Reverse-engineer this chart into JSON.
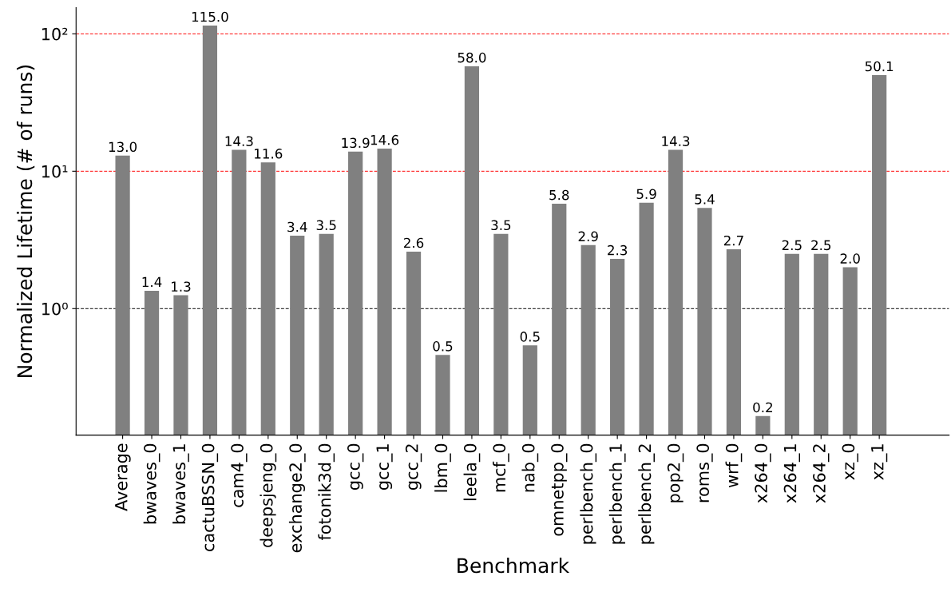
{
  "chart_data": {
    "type": "bar",
    "xlabel": "Benchmark",
    "ylabel": "Normalized Lifetime (# of runs)",
    "categories": [
      "Average",
      "bwaves_0",
      "bwaves_1",
      "cactuBSSN_0",
      "cam4_0",
      "deepsjeng_0",
      "exchange2_0",
      "fotonik3d_0",
      "gcc_0",
      "gcc_1",
      "gcc_2",
      "lbm_0",
      "leela_0",
      "mcf_0",
      "nab_0",
      "omnetpp_0",
      "perlbench_0",
      "perlbench_1",
      "perlbench_2",
      "pop2_0",
      "roms_0",
      "wrf_0",
      "x264_0",
      "x264_1",
      "x264_2",
      "xz_0",
      "xz_1"
    ],
    "values": [
      13.0,
      1.35,
      1.25,
      115.0,
      14.3,
      11.6,
      3.4,
      3.5,
      13.9,
      14.6,
      2.6,
      0.46,
      58.0,
      3.5,
      0.54,
      5.8,
      2.9,
      2.3,
      5.9,
      14.3,
      5.4,
      2.7,
      0.165,
      2.5,
      2.5,
      2.0,
      50.1
    ],
    "value_labels": [
      "13.0",
      "1.4",
      "1.3",
      "115.0",
      "14.3",
      "11.6",
      "3.4",
      "3.5",
      "13.9",
      "14.6",
      "2.6",
      "0.5",
      "58.0",
      "3.5",
      "0.5",
      "5.8",
      "2.9",
      "2.3",
      "5.9",
      "14.3",
      "5.4",
      "2.7",
      "0.2",
      "2.5",
      "2.5",
      "2.0",
      "50.1"
    ],
    "color": "#808080",
    "log": true,
    "grid": false,
    "ylim": [
      0.12,
      155
    ],
    "yticks": [
      {
        "value": 1,
        "label": "10⁰"
      },
      {
        "value": 10,
        "label": "10¹"
      },
      {
        "value": 100,
        "label": "10²"
      }
    ],
    "ref_lines": [
      {
        "axis": "y",
        "value": 1,
        "color": "#000000",
        "line_style": "dashed"
      },
      {
        "axis": "y",
        "value": 10,
        "color": "#ff0000",
        "line_style": "dashed"
      },
      {
        "axis": "y",
        "value": 100,
        "color": "#ff0000",
        "line_style": "dashed"
      }
    ]
  }
}
